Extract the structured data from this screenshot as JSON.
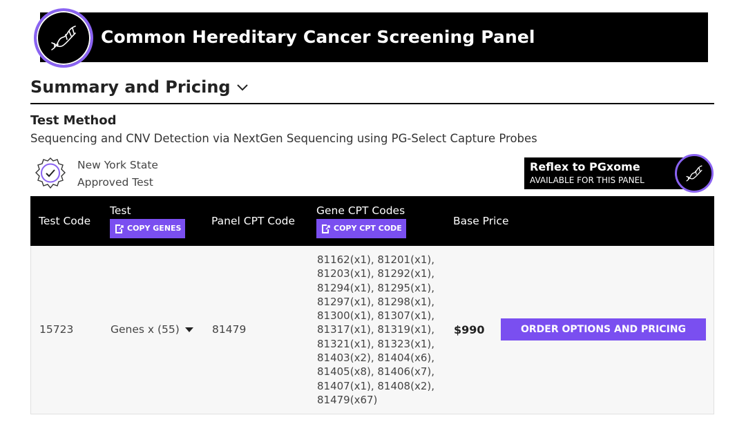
{
  "header": {
    "title": "Common Hereditary Cancer Screening Panel",
    "logo_icon": "dna-icon",
    "accent": "#8a63f2"
  },
  "summary": {
    "title": "Summary and Pricing",
    "toggle_icon": "chevron-down-icon"
  },
  "test_method": {
    "label": "Test Method",
    "value": "Sequencing and CNV Detection via NextGen Sequencing using PG-Select Capture Probes"
  },
  "nys": {
    "line1": "New York State",
    "line2": "Approved Test",
    "icon": "certified-badge-icon"
  },
  "reflex": {
    "title": "Reflex to PGxome",
    "subtitle": "AVAILABLE FOR THIS PANEL",
    "icon": "dna-icon"
  },
  "table": {
    "headers": {
      "test_code": "Test Code",
      "test": "Test",
      "copy_genes": "COPY GENES",
      "panel_cpt": "Panel CPT Code",
      "gene_cpt": "Gene CPT Codes",
      "copy_cpt": "COPY CPT CODE",
      "base_price": "Base Price"
    },
    "row": {
      "test_code": "15723",
      "genes": "Genes x (55)",
      "panel_cpt": "81479",
      "gene_cpt_lines": [
        "81162(x1), 81201(x1),",
        "81203(x1), 81292(x1),",
        "81294(x1), 81295(x1),",
        "81297(x1), 81298(x1),",
        "81300(x1), 81307(x1),",
        "81317(x1), 81319(x1),",
        "81321(x1), 81323(x1),",
        "81403(x2), 81404(x6),",
        "81405(x8), 81406(x7),",
        "81407(x1), 81408(x2),",
        "81479(x67)"
      ],
      "price": "$990",
      "order_label": "ORDER OPTIONS AND PRICING"
    }
  },
  "colors": {
    "purple": "#7a4ff0",
    "black": "#000000",
    "row_bg": "#f7f7f7"
  }
}
